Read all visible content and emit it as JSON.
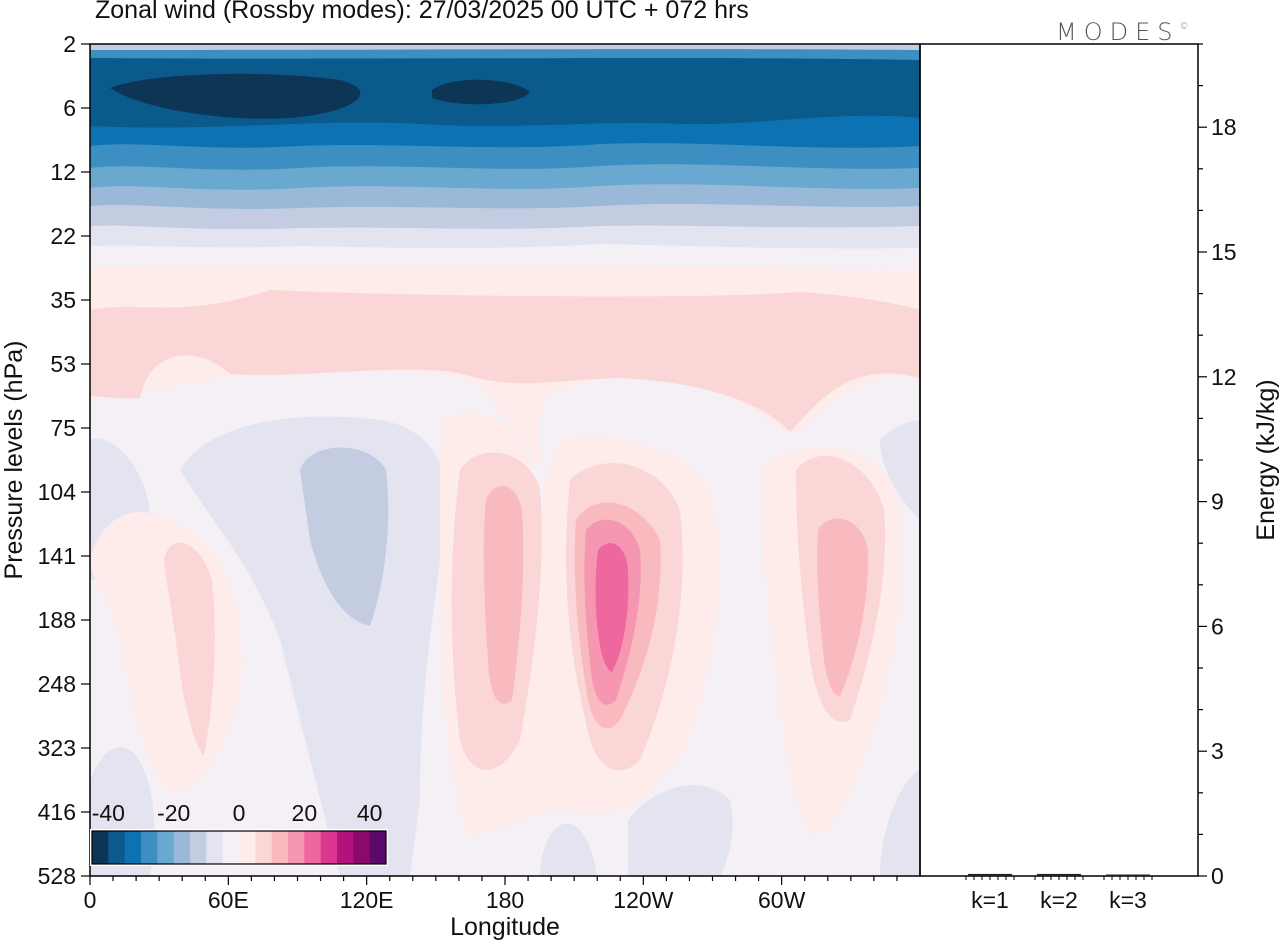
{
  "title": "Zonal wind (Rossby modes):  27/03/2025  00 UTC  + 072 hrs",
  "logo": "MODES",
  "logo_mark": "©",
  "chart_data": [
    {
      "type": "heatmap",
      "title": "Zonal wind (Rossby modes):  27/03/2025  00 UTC  + 072 hrs",
      "xlabel": "Longitude",
      "ylabel": "Pressure levels (hPa)",
      "x_ticks": [
        "0",
        "60E",
        "120E",
        "180",
        "120W",
        "60W"
      ],
      "x_range_deg": [
        0,
        360
      ],
      "y_ticks": [
        "2",
        "6",
        "12",
        "22",
        "35",
        "53",
        "75",
        "104",
        "141",
        "188",
        "248",
        "323",
        "416",
        "528"
      ],
      "colorbar": {
        "labels": [
          "-40",
          "-20",
          "0",
          "20",
          "40"
        ],
        "range": [
          -45,
          45
        ],
        "levels": [
          -45,
          -40,
          -35,
          -30,
          -25,
          -20,
          -15,
          -10,
          -5,
          0,
          5,
          10,
          15,
          20,
          25,
          30,
          35,
          40,
          45
        ],
        "colors": [
          "#0d3556",
          "#0b5a8c",
          "#0d72b1",
          "#3d8fc2",
          "#6aa9cf",
          "#9ab9d8",
          "#c4cce2",
          "#e3e4f0",
          "#f4f0f6",
          "#fdecea",
          "#fbd6d6",
          "#f8b9bf",
          "#f597b0",
          "#ef679f",
          "#d9388e",
          "#b3127a",
          "#8a0a6c",
          "#5c0a6a"
        ]
      },
      "grid": false
    },
    {
      "type": "bar",
      "categories": [
        "k=1",
        "k=2",
        "k=3"
      ],
      "values": [
        0.05,
        0.05,
        0.03
      ],
      "ylabel": "Energy (kJ/kg)",
      "y_ticks": [
        "0",
        "3",
        "6",
        "9",
        "12",
        "15",
        "18"
      ],
      "ylim": [
        0,
        20
      ]
    }
  ]
}
